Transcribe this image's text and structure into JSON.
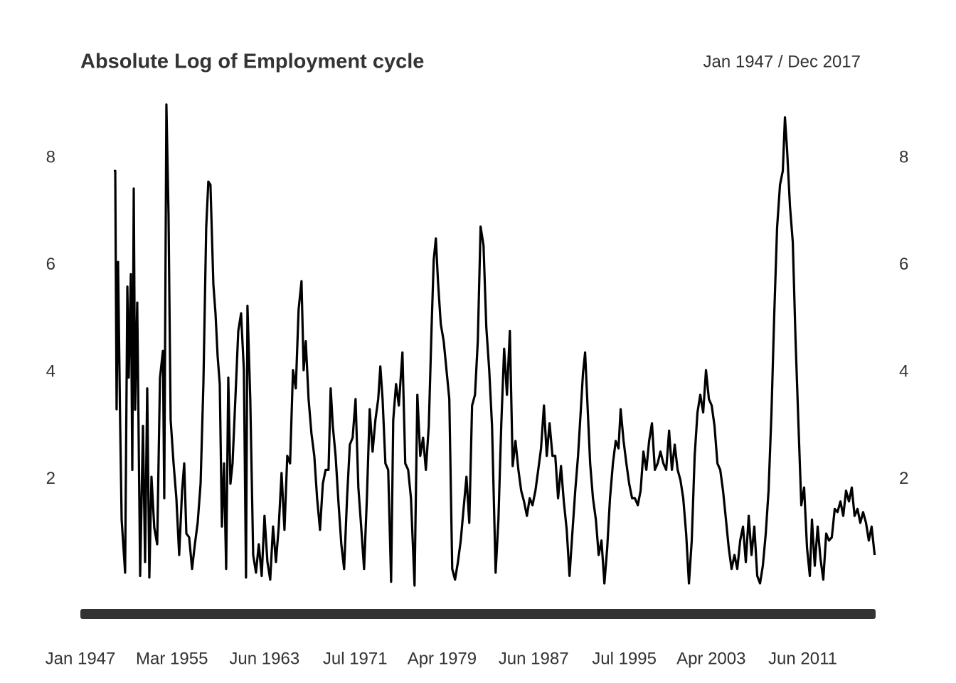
{
  "chart_data": {
    "type": "line",
    "title": "Absolute Log of Employment cycle",
    "subtitle": "Jan 1947 / Dec 2017",
    "color": "#000000",
    "x": [
      1949.98,
      1950.11,
      1950.23,
      1950.36,
      1950.55,
      1950.68,
      1950.99,
      1951.19,
      1951.31,
      1951.5,
      1951.63,
      1951.76,
      1951.88,
      1952.07,
      1952.33,
      1952.58,
      1952.77,
      1952.96,
      1953.15,
      1953.34,
      1953.59,
      1953.85,
      1954.1,
      1954.36,
      1954.48,
      1954.67,
      1954.86,
      1955.05,
      1955.31,
      1955.56,
      1955.81,
      1956.07,
      1956.26,
      1956.45,
      1956.7,
      1956.96,
      1957.21,
      1957.46,
      1957.72,
      1957.97,
      1958.22,
      1958.41,
      1958.6,
      1958.86,
      1959.05,
      1959.24,
      1959.43,
      1959.62,
      1959.81,
      1960.0,
      1960.19,
      1960.38,
      1960.57,
      1960.82,
      1961.08,
      1961.33,
      1961.58,
      1961.77,
      1961.9,
      1962.15,
      1962.41,
      1962.66,
      1962.91,
      1963.17,
      1963.42,
      1963.68,
      1963.93,
      1964.18,
      1964.44,
      1964.69,
      1964.94,
      1965.2,
      1965.45,
      1965.7,
      1965.96,
      1966.21,
      1966.46,
      1966.72,
      1966.91,
      1967.1,
      1967.35,
      1967.61,
      1967.86,
      1968.11,
      1968.37,
      1968.62,
      1968.87,
      1969.13,
      1969.32,
      1969.51,
      1969.76,
      1970.01,
      1970.27,
      1970.52,
      1970.78,
      1971.03,
      1971.28,
      1971.54,
      1971.79,
      1972.04,
      1972.3,
      1972.55,
      1972.8,
      1973.06,
      1973.31,
      1973.56,
      1973.75,
      1973.95,
      1974.2,
      1974.45,
      1974.71,
      1974.9,
      1975.15,
      1975.4,
      1975.72,
      1975.97,
      1976.23,
      1976.48,
      1976.8,
      1977.05,
      1977.31,
      1977.56,
      1977.81,
      1978.07,
      1978.32,
      1978.51,
      1978.7,
      1978.89,
      1979.14,
      1979.4,
      1979.65,
      1979.9,
      1980.16,
      1980.41,
      1980.67,
      1980.92,
      1981.17,
      1981.43,
      1981.68,
      1981.93,
      1982.19,
      1982.44,
      1982.69,
      1982.95,
      1983.2,
      1983.46,
      1983.71,
      1984.03,
      1984.28,
      1984.53,
      1984.79,
      1985.04,
      1985.3,
      1985.55,
      1985.8,
      1986.06,
      1986.31,
      1986.56,
      1986.82,
      1987.07,
      1987.32,
      1987.58,
      1987.83,
      1988.08,
      1988.34,
      1988.59,
      1988.84,
      1989.1,
      1989.35,
      1989.6,
      1989.86,
      1990.11,
      1990.37,
      1990.62,
      1990.87,
      1991.13,
      1991.38,
      1991.63,
      1991.82,
      1992.01,
      1992.2,
      1992.46,
      1992.71,
      1992.97,
      1993.22,
      1993.47,
      1993.73,
      1993.98,
      1994.23,
      1994.49,
      1994.74,
      1994.99,
      1995.18,
      1995.44,
      1995.69,
      1995.94,
      1996.2,
      1996.45,
      1996.71,
      1996.96,
      1997.21,
      1997.47,
      1997.72,
      1997.97,
      1998.23,
      1998.48,
      1998.73,
      1998.99,
      1999.24,
      1999.5,
      1999.75,
      2000.0,
      2000.26,
      2000.51,
      2000.76,
      2001.02,
      2001.27,
      2001.52,
      2001.78,
      2002.03,
      2002.28,
      2002.54,
      2002.79,
      2003.05,
      2003.3,
      2003.55,
      2003.81,
      2004.06,
      2004.31,
      2004.57,
      2004.82,
      2005.07,
      2005.33,
      2005.58,
      2005.84,
      2006.09,
      2006.34,
      2006.6,
      2006.85,
      2007.1,
      2007.36,
      2007.61,
      2007.86,
      2008.12,
      2008.37,
      2008.63,
      2008.88,
      2009.13,
      2009.39,
      2009.64,
      2009.83,
      2010.02,
      2010.28,
      2010.53,
      2010.78,
      2011.04,
      2011.29,
      2011.54,
      2011.8,
      2012.05,
      2012.24,
      2012.49,
      2012.75,
      2013.0,
      2013.25,
      2013.51,
      2013.76,
      2014.01,
      2014.27,
      2014.52,
      2014.78,
      2015.03,
      2015.28,
      2015.54,
      2015.79,
      2016.04,
      2016.3,
      2016.55,
      2016.8,
      2017.06,
      2017.31,
      2017.56,
      2017.83
    ],
    "values": [
      7.76,
      7.76,
      3.31,
      6.06,
      3.0,
      1.25,
      0.26,
      5.6,
      3.9,
      5.83,
      2.18,
      7.43,
      3.3,
      5.3,
      0.2,
      3.0,
      0.46,
      3.7,
      0.17,
      2.05,
      1.1,
      0.79,
      3.9,
      4.4,
      1.65,
      9.0,
      6.96,
      3.11,
      2.3,
      1.65,
      0.59,
      1.79,
      2.3,
      0.99,
      0.92,
      0.33,
      0.79,
      1.19,
      1.92,
      3.78,
      6.7,
      7.56,
      7.5,
      5.64,
      5.1,
      4.3,
      3.78,
      1.12,
      2.3,
      0.33,
      3.9,
      1.92,
      2.3,
      3.5,
      4.77,
      5.1,
      4.04,
      0.17,
      5.24,
      3.5,
      0.59,
      0.26,
      0.79,
      0.2,
      1.32,
      0.46,
      0.13,
      1.12,
      0.46,
      1.12,
      2.12,
      1.06,
      2.44,
      2.3,
      4.04,
      3.7,
      5.17,
      5.7,
      4.04,
      4.58,
      3.5,
      2.85,
      2.44,
      1.65,
      1.06,
      1.92,
      2.18,
      2.18,
      3.7,
      3.0,
      2.44,
      1.59,
      0.79,
      0.33,
      1.65,
      2.65,
      2.78,
      3.5,
      1.85,
      1.12,
      0.33,
      1.65,
      3.31,
      2.52,
      3.11,
      3.5,
      4.11,
      3.5,
      2.3,
      2.18,
      0.09,
      3.11,
      3.78,
      3.38,
      4.37,
      2.3,
      2.18,
      1.65,
      0.02,
      3.58,
      2.44,
      2.78,
      2.18,
      3.0,
      4.84,
      6.1,
      6.5,
      5.7,
      4.9,
      4.58,
      4.04,
      3.5,
      0.33,
      0.13,
      0.46,
      0.86,
      1.45,
      2.05,
      1.19,
      3.38,
      3.58,
      4.58,
      6.72,
      6.37,
      4.84,
      4.04,
      3.0,
      0.26,
      1.25,
      3.0,
      4.44,
      3.58,
      4.77,
      2.25,
      2.72,
      2.18,
      1.79,
      1.59,
      1.32,
      1.65,
      1.52,
      1.79,
      2.18,
      2.58,
      3.38,
      2.44,
      3.05,
      2.44,
      2.44,
      1.65,
      2.25,
      1.59,
      1.06,
      0.2,
      0.99,
      1.79,
      2.44,
      3.31,
      3.98,
      4.37,
      3.5,
      2.3,
      1.65,
      1.25,
      0.59,
      0.86,
      0.06,
      0.72,
      1.65,
      2.3,
      2.72,
      2.58,
      3.31,
      2.72,
      2.3,
      1.92,
      1.65,
      1.65,
      1.52,
      1.79,
      2.52,
      2.18,
      2.72,
      3.05,
      2.18,
      2.3,
      2.52,
      2.3,
      2.18,
      2.91,
      2.18,
      2.65,
      2.18,
      1.99,
      1.65,
      0.99,
      0.06,
      0.86,
      2.44,
      3.25,
      3.58,
      3.25,
      4.04,
      3.5,
      3.38,
      3.0,
      2.3,
      2.18,
      1.79,
      1.25,
      0.72,
      0.33,
      0.59,
      0.33,
      0.86,
      1.12,
      0.46,
      1.32,
      0.59,
      1.12,
      0.2,
      0.06,
      0.39,
      0.99,
      1.79,
      3.25,
      5.1,
      6.7,
      7.5,
      7.76,
      8.76,
      8.16,
      7.1,
      6.43,
      4.58,
      3.0,
      1.52,
      1.85,
      0.72,
      0.2,
      1.25,
      0.39,
      1.12,
      0.52,
      0.13,
      0.99,
      0.86,
      0.92,
      1.45,
      1.39,
      1.59,
      1.32,
      1.79,
      1.59,
      1.85,
      1.32,
      1.45,
      1.19,
      1.39,
      1.19,
      0.86,
      1.12,
      0.59
    ],
    "xlim": [
      1947,
      2017.917
    ],
    "xticks": [
      {
        "value": 1947.0,
        "label": "Jan 1947"
      },
      {
        "value": 1955.167,
        "label": "Mar 1955"
      },
      {
        "value": 1963.417,
        "label": "Jun 1963"
      },
      {
        "value": 1971.5,
        "label": "Jul 1971"
      },
      {
        "value": 1979.25,
        "label": "Apr 1979"
      },
      {
        "value": 1987.417,
        "label": "Jun 1987"
      },
      {
        "value": 1995.5,
        "label": "Jul 1995"
      },
      {
        "value": 2003.25,
        "label": "Apr 2003"
      },
      {
        "value": 2011.417,
        "label": "Jun 2011"
      }
    ],
    "ylim": [
      0,
      9
    ],
    "yticks": [
      2,
      4,
      6,
      8
    ],
    "grid": false
  }
}
